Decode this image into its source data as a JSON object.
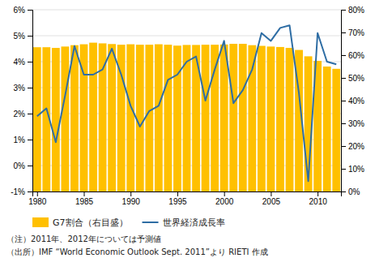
{
  "chart_data": {
    "type": "bar",
    "x": [
      1980,
      1981,
      1982,
      1983,
      1984,
      1985,
      1986,
      1987,
      1988,
      1989,
      1990,
      1991,
      1992,
      1993,
      1994,
      1995,
      1996,
      1997,
      1998,
      1999,
      2000,
      2001,
      2002,
      2003,
      2004,
      2005,
      2006,
      2007,
      2008,
      2009,
      2010,
      2011,
      2012
    ],
    "series": [
      {
        "name": "G7割合（右目盛）",
        "type": "bar",
        "color": "#FFC000",
        "axis": "y2",
        "values": [
          63.5,
          63.5,
          63.2,
          63.8,
          64.4,
          64.8,
          65.5,
          65.2,
          64.9,
          64.6,
          64.8,
          64.6,
          64.6,
          64.8,
          64.6,
          64.2,
          64.5,
          64.5,
          64.6,
          64.6,
          64.7,
          65.0,
          65.0,
          64.4,
          64.1,
          63.8,
          63.6,
          63.2,
          62.3,
          59.5,
          57.5,
          55.0,
          54.0
        ]
      },
      {
        "name": "世界経済成長率",
        "type": "line",
        "color": "#2E6DA4",
        "values": [
          1.9,
          2.2,
          0.9,
          2.7,
          4.6,
          3.5,
          3.5,
          3.7,
          4.5,
          3.5,
          2.3,
          1.5,
          2.1,
          2.3,
          3.3,
          3.5,
          4.0,
          4.2,
          2.5,
          3.7,
          4.8,
          2.4,
          2.9,
          3.7,
          5.1,
          4.8,
          5.3,
          5.4,
          2.8,
          -0.6,
          5.1,
          4.0,
          3.9
        ]
      }
    ],
    "xlim": [
      1979.5,
      2012.5
    ],
    "xticks": [
      1980,
      1985,
      1990,
      1995,
      2000,
      2005,
      2010
    ],
    "ylim": [
      -1,
      6
    ],
    "yticks": [
      {
        "value": -1,
        "label": "-1%"
      },
      {
        "value": 0,
        "label": "0%"
      },
      {
        "value": 1,
        "label": "1%"
      },
      {
        "value": 2,
        "label": "2%"
      },
      {
        "value": 3,
        "label": "3%"
      },
      {
        "value": 4,
        "label": "4%"
      },
      {
        "value": 5,
        "label": "5%"
      },
      {
        "value": 6,
        "label": "6%"
      }
    ],
    "y2lim": [
      0,
      80
    ],
    "y2ticks": [
      {
        "value": 0,
        "label": "0%"
      },
      {
        "value": 10,
        "label": "10%"
      },
      {
        "value": 20,
        "label": "20%"
      },
      {
        "value": 30,
        "label": "30%"
      },
      {
        "value": 40,
        "label": "40%"
      },
      {
        "value": 50,
        "label": "50%"
      },
      {
        "value": 60,
        "label": "60%"
      },
      {
        "value": 70,
        "label": "70%"
      },
      {
        "value": 80,
        "label": "80%"
      }
    ],
    "grid": true,
    "legend": "lower left",
    "annotations": [
      "（注）2011年、2012年については予測値",
      "（出所）IMF “World Economic Outlook Sept. 2011”より RIETI 作成"
    ]
  }
}
